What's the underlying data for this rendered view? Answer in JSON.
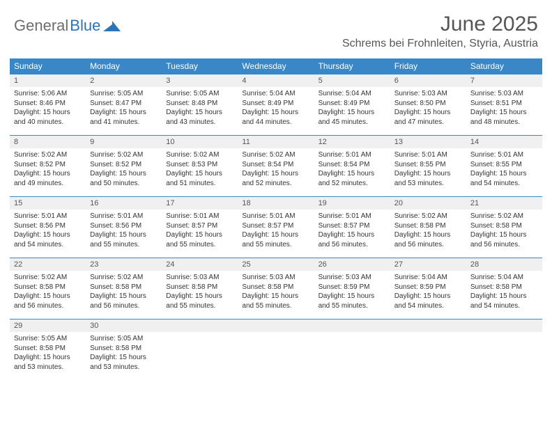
{
  "logo": {
    "text1": "General",
    "text2": "Blue"
  },
  "title": "June 2025",
  "location": "Schrems bei Frohnleiten, Styria, Austria",
  "colors": {
    "header_bar": "#3a87c8",
    "daynum_bg": "#f0f0f0",
    "logo_gray": "#6d6d6d",
    "logo_blue": "#2a74b8"
  },
  "days_of_week": [
    "Sunday",
    "Monday",
    "Tuesday",
    "Wednesday",
    "Thursday",
    "Friday",
    "Saturday"
  ],
  "days": [
    {
      "n": "1",
      "sr": "5:06 AM",
      "ss": "8:46 PM",
      "dl": "15 hours and 40 minutes."
    },
    {
      "n": "2",
      "sr": "5:05 AM",
      "ss": "8:47 PM",
      "dl": "15 hours and 41 minutes."
    },
    {
      "n": "3",
      "sr": "5:05 AM",
      "ss": "8:48 PM",
      "dl": "15 hours and 43 minutes."
    },
    {
      "n": "4",
      "sr": "5:04 AM",
      "ss": "8:49 PM",
      "dl": "15 hours and 44 minutes."
    },
    {
      "n": "5",
      "sr": "5:04 AM",
      "ss": "8:49 PM",
      "dl": "15 hours and 45 minutes."
    },
    {
      "n": "6",
      "sr": "5:03 AM",
      "ss": "8:50 PM",
      "dl": "15 hours and 47 minutes."
    },
    {
      "n": "7",
      "sr": "5:03 AM",
      "ss": "8:51 PM",
      "dl": "15 hours and 48 minutes."
    },
    {
      "n": "8",
      "sr": "5:02 AM",
      "ss": "8:52 PM",
      "dl": "15 hours and 49 minutes."
    },
    {
      "n": "9",
      "sr": "5:02 AM",
      "ss": "8:52 PM",
      "dl": "15 hours and 50 minutes."
    },
    {
      "n": "10",
      "sr": "5:02 AM",
      "ss": "8:53 PM",
      "dl": "15 hours and 51 minutes."
    },
    {
      "n": "11",
      "sr": "5:02 AM",
      "ss": "8:54 PM",
      "dl": "15 hours and 52 minutes."
    },
    {
      "n": "12",
      "sr": "5:01 AM",
      "ss": "8:54 PM",
      "dl": "15 hours and 52 minutes."
    },
    {
      "n": "13",
      "sr": "5:01 AM",
      "ss": "8:55 PM",
      "dl": "15 hours and 53 minutes."
    },
    {
      "n": "14",
      "sr": "5:01 AM",
      "ss": "8:55 PM",
      "dl": "15 hours and 54 minutes."
    },
    {
      "n": "15",
      "sr": "5:01 AM",
      "ss": "8:56 PM",
      "dl": "15 hours and 54 minutes."
    },
    {
      "n": "16",
      "sr": "5:01 AM",
      "ss": "8:56 PM",
      "dl": "15 hours and 55 minutes."
    },
    {
      "n": "17",
      "sr": "5:01 AM",
      "ss": "8:57 PM",
      "dl": "15 hours and 55 minutes."
    },
    {
      "n": "18",
      "sr": "5:01 AM",
      "ss": "8:57 PM",
      "dl": "15 hours and 55 minutes."
    },
    {
      "n": "19",
      "sr": "5:01 AM",
      "ss": "8:57 PM",
      "dl": "15 hours and 56 minutes."
    },
    {
      "n": "20",
      "sr": "5:02 AM",
      "ss": "8:58 PM",
      "dl": "15 hours and 56 minutes."
    },
    {
      "n": "21",
      "sr": "5:02 AM",
      "ss": "8:58 PM",
      "dl": "15 hours and 56 minutes."
    },
    {
      "n": "22",
      "sr": "5:02 AM",
      "ss": "8:58 PM",
      "dl": "15 hours and 56 minutes."
    },
    {
      "n": "23",
      "sr": "5:02 AM",
      "ss": "8:58 PM",
      "dl": "15 hours and 56 minutes."
    },
    {
      "n": "24",
      "sr": "5:03 AM",
      "ss": "8:58 PM",
      "dl": "15 hours and 55 minutes."
    },
    {
      "n": "25",
      "sr": "5:03 AM",
      "ss": "8:58 PM",
      "dl": "15 hours and 55 minutes."
    },
    {
      "n": "26",
      "sr": "5:03 AM",
      "ss": "8:59 PM",
      "dl": "15 hours and 55 minutes."
    },
    {
      "n": "27",
      "sr": "5:04 AM",
      "ss": "8:59 PM",
      "dl": "15 hours and 54 minutes."
    },
    {
      "n": "28",
      "sr": "5:04 AM",
      "ss": "8:58 PM",
      "dl": "15 hours and 54 minutes."
    },
    {
      "n": "29",
      "sr": "5:05 AM",
      "ss": "8:58 PM",
      "dl": "15 hours and 53 minutes."
    },
    {
      "n": "30",
      "sr": "5:05 AM",
      "ss": "8:58 PM",
      "dl": "15 hours and 53 minutes."
    }
  ],
  "labels": {
    "sunrise": "Sunrise:",
    "sunset": "Sunset:",
    "daylight": "Daylight:"
  }
}
